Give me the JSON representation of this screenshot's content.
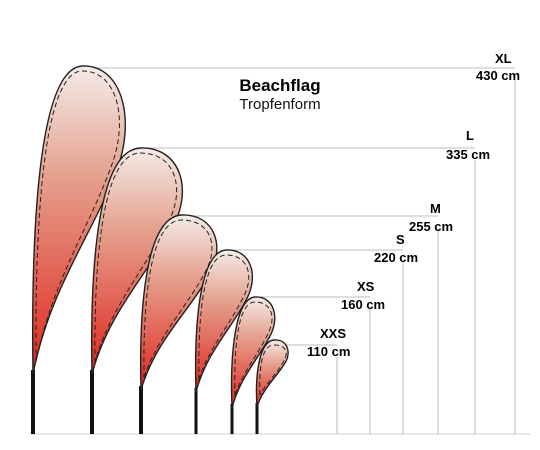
{
  "title": "Beachflag",
  "subtitle": "Tropfenform",
  "colors": {
    "flag_top": "#f4ece8",
    "flag_bottom": "#e0251b",
    "outline": "#222222",
    "guide": "#bdbdbd"
  },
  "sizes": [
    {
      "name": "XL",
      "height": "430 cm"
    },
    {
      "name": "L",
      "height": "335 cm"
    },
    {
      "name": "M",
      "height": "255 cm"
    },
    {
      "name": "S",
      "height": "220 cm"
    },
    {
      "name": "XS",
      "height": "160 cm"
    },
    {
      "name": "XXS",
      "height": "110 cm"
    }
  ]
}
